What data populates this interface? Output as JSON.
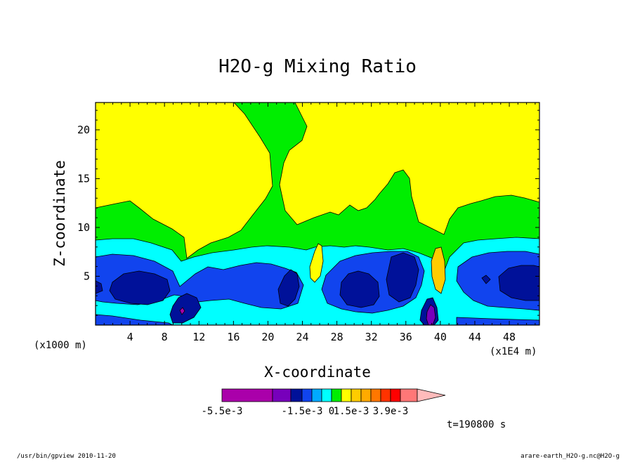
{
  "chart_data": {
    "type": "heatmap",
    "title": "H2O-g Mixing Ratio",
    "xlabel": "X-coordinate",
    "ylabel": "Z-coordinate",
    "x_unit_left": "(x1000 m)",
    "x_unit_right": "(x1E4 m)",
    "xlim": [
      0,
      51.5
    ],
    "ylim": [
      0,
      22.8
    ],
    "xticks": [
      4,
      8,
      12,
      16,
      20,
      24,
      28,
      32,
      36,
      40,
      44,
      48
    ],
    "yticks": [
      5,
      10,
      15,
      20
    ],
    "time_label": "t=190800 s",
    "colorbar": {
      "tick_labels": [
        "-5.5e-3",
        "-1.5e-3",
        "0",
        "1.5e-3",
        "3.9e-3"
      ],
      "colors": [
        "#aa00aa",
        "#7700bb",
        "#001199",
        "#1144ee",
        "#00aaff",
        "#00ffff",
        "#00ee00",
        "#ffff00",
        "#ffcc00",
        "#ffaa00",
        "#ff7700",
        "#ff3300",
        "#ff0000",
        "#ff7777",
        "#ffbbbb"
      ]
    },
    "palette": {
      "yellow": "#ffff00",
      "green": "#00ee00",
      "cyan": "#00ffff",
      "blue": "#1144ee",
      "navy": "#001199",
      "violet": "#7700bb",
      "magenta": "#aa00aa",
      "orange": "#ffcc00"
    }
  },
  "footer": {
    "left": "/usr/bin/gpview   2010-11-20",
    "right": "arare-earth_H2O-g.nc@H2O-g"
  }
}
